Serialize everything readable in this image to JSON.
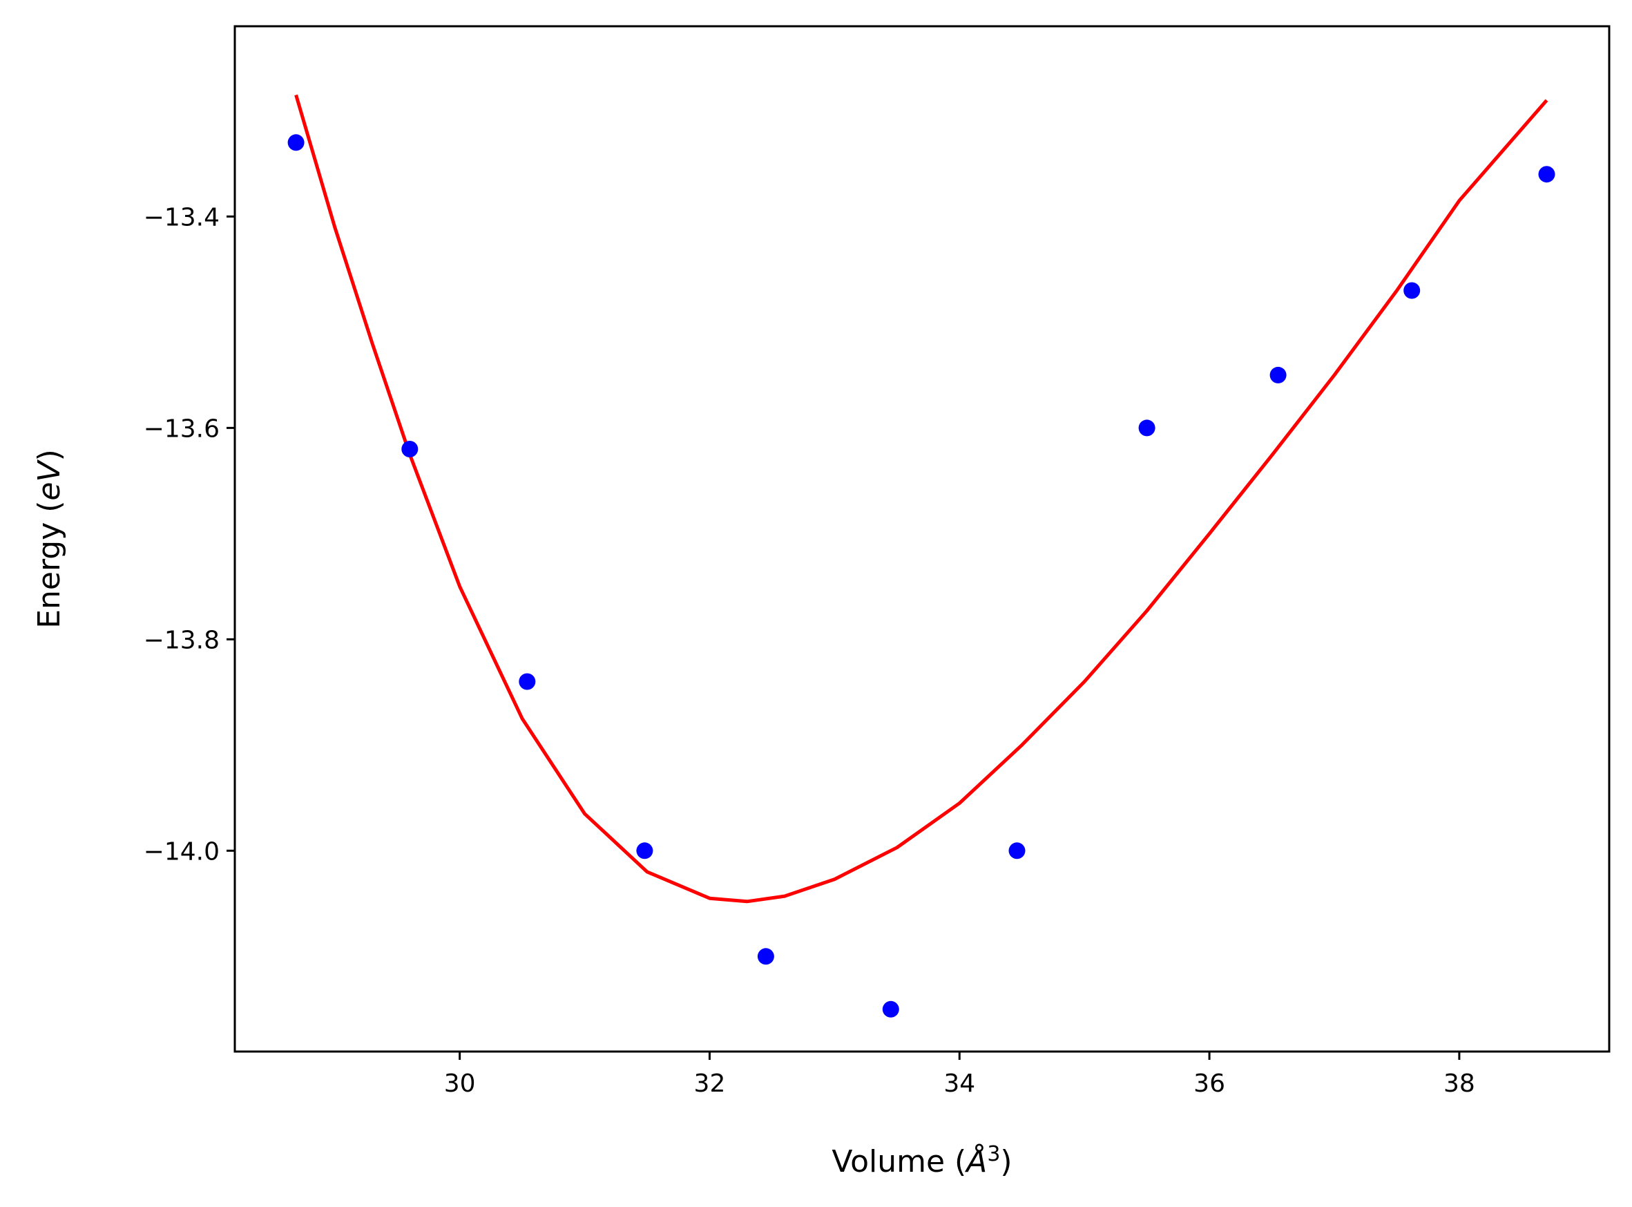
{
  "chart_data": {
    "type": "scatter",
    "xlabel": "Volume (Å³)",
    "xlabel_parts": {
      "prefix": "Volume (",
      "unit": "Å",
      "power": "3",
      "suffix": ")"
    },
    "ylabel": "Energy (eV)",
    "ylabel_parts": {
      "prefix": "Energy (",
      "unit": "eV",
      "suffix": ")"
    },
    "xlim": [
      28.2,
      39.2
    ],
    "ylim": [
      -14.19,
      -13.22
    ],
    "x_ticks": [
      30,
      32,
      34,
      36,
      38
    ],
    "x_tick_labels": [
      "30",
      "32",
      "34",
      "36",
      "38"
    ],
    "y_ticks": [
      -13.4,
      -13.6,
      -13.8,
      -14.0
    ],
    "y_tick_labels": [
      "−13.4",
      "−13.6",
      "−13.8",
      "−14.0"
    ],
    "grid": false,
    "legend": "none",
    "series": [
      {
        "kind": "points",
        "color": "#0000ff",
        "x": [
          28.69,
          29.6,
          30.54,
          31.48,
          32.45,
          33.45,
          34.46,
          35.5,
          36.55,
          37.62,
          38.7
        ],
        "y": [
          -13.33,
          -13.62,
          -13.84,
          -14.0,
          -14.1,
          -14.15,
          -14.0,
          -13.6,
          -13.55,
          -13.47,
          -13.36
        ]
      },
      {
        "kind": "fit",
        "color": "#ff0000",
        "x": [
          28.69,
          29.0,
          29.3,
          29.6,
          30.0,
          30.5,
          31.0,
          31.5,
          32.0,
          32.3,
          32.6,
          33.0,
          33.5,
          34.0,
          34.5,
          35.0,
          35.5,
          36.0,
          36.5,
          37.0,
          37.5,
          38.0,
          38.7
        ],
        "y": [
          -13.285,
          -13.41,
          -13.52,
          -13.625,
          -13.75,
          -13.875,
          -13.965,
          -14.02,
          -14.045,
          -14.048,
          -14.043,
          -14.027,
          -13.997,
          -13.955,
          -13.9,
          -13.84,
          -13.773,
          -13.7,
          -13.626,
          -13.55,
          -13.47,
          -13.385,
          -13.29
        ]
      }
    ]
  }
}
